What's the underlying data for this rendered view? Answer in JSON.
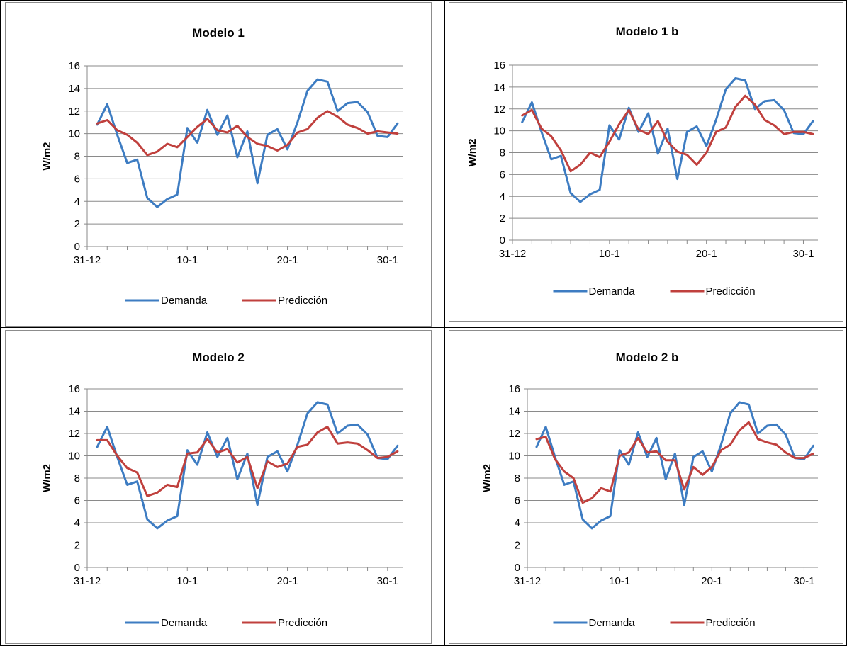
{
  "colors": {
    "demanda": "#3d7cc2",
    "prediccion": "#c0403d"
  },
  "chart_data": [
    {
      "type": "line",
      "title": "Modelo 1",
      "xlabel": "",
      "ylabel": "W/m2",
      "ylim": [
        0,
        16
      ],
      "yticks": [
        0,
        2,
        4,
        6,
        8,
        10,
        12,
        14,
        16
      ],
      "xlim": [
        0,
        31.5
      ],
      "xtick_positions": [
        0,
        10,
        20,
        30
      ],
      "xtick_labels": [
        "31-12",
        "10-1",
        "20-1",
        "30-1"
      ],
      "x": [
        1,
        2,
        3,
        4,
        5,
        6,
        7,
        8,
        9,
        10,
        11,
        12,
        13,
        14,
        15,
        16,
        17,
        18,
        19,
        20,
        21,
        22,
        23,
        24,
        25,
        26,
        27,
        28,
        29,
        30,
        31
      ],
      "grid": true,
      "legend_position": "bottom",
      "series": [
        {
          "name": "Demanda",
          "color": "#3d7cc2",
          "values": [
            10.8,
            12.6,
            9.9,
            7.4,
            7.7,
            4.3,
            3.5,
            4.2,
            4.6,
            10.5,
            9.2,
            12.1,
            9.9,
            11.6,
            7.9,
            10.2,
            5.6,
            9.9,
            10.4,
            8.6,
            11.0,
            13.8,
            14.8,
            14.6,
            12.0,
            12.7,
            12.8,
            11.9,
            9.8,
            9.7,
            10.9
          ]
        },
        {
          "name": "Predicción",
          "color": "#c0403d",
          "values": [
            10.9,
            11.2,
            10.3,
            9.9,
            9.2,
            8.1,
            8.4,
            9.1,
            8.8,
            9.7,
            10.6,
            11.3,
            10.3,
            10.1,
            10.7,
            9.7,
            9.1,
            8.9,
            8.5,
            9.0,
            10.1,
            10.4,
            11.4,
            12.0,
            11.5,
            10.8,
            10.5,
            10.0,
            10.2,
            10.1,
            10.0
          ]
        }
      ]
    },
    {
      "type": "line",
      "title": "Modelo 1 b",
      "xlabel": "",
      "ylabel": "W/m2",
      "ylim": [
        0,
        16
      ],
      "yticks": [
        0,
        2,
        4,
        6,
        8,
        10,
        12,
        14,
        16
      ],
      "xlim": [
        0,
        31.5
      ],
      "xtick_positions": [
        0,
        10,
        20,
        30
      ],
      "xtick_labels": [
        "31-12",
        "10-1",
        "20-1",
        "30-1"
      ],
      "x": [
        1,
        2,
        3,
        4,
        5,
        6,
        7,
        8,
        9,
        10,
        11,
        12,
        13,
        14,
        15,
        16,
        17,
        18,
        19,
        20,
        21,
        22,
        23,
        24,
        25,
        26,
        27,
        28,
        29,
        30,
        31
      ],
      "grid": true,
      "legend_position": "bottom",
      "series": [
        {
          "name": "Demanda",
          "color": "#3d7cc2",
          "values": [
            10.8,
            12.6,
            9.9,
            7.4,
            7.7,
            4.3,
            3.5,
            4.2,
            4.6,
            10.5,
            9.2,
            12.1,
            9.9,
            11.6,
            7.9,
            10.2,
            5.6,
            9.9,
            10.4,
            8.6,
            11.0,
            13.8,
            14.8,
            14.6,
            12.0,
            12.7,
            12.8,
            11.9,
            9.8,
            9.7,
            10.9
          ]
        },
        {
          "name": "Predicción",
          "color": "#c0403d",
          "values": [
            11.4,
            11.9,
            10.2,
            9.5,
            8.2,
            6.3,
            6.9,
            8.0,
            7.6,
            9.0,
            10.6,
            11.9,
            10.1,
            9.7,
            10.9,
            9.0,
            8.1,
            7.8,
            6.9,
            8.0,
            9.9,
            10.3,
            12.2,
            13.2,
            12.4,
            11.0,
            10.5,
            9.7,
            9.9,
            9.9,
            9.7
          ]
        }
      ]
    },
    {
      "type": "line",
      "title": "Modelo 2",
      "xlabel": "",
      "ylabel": "W/m2",
      "ylim": [
        0,
        16
      ],
      "yticks": [
        0,
        2,
        4,
        6,
        8,
        10,
        12,
        14,
        16
      ],
      "xlim": [
        0,
        31.5
      ],
      "xtick_positions": [
        0,
        10,
        20,
        30
      ],
      "xtick_labels": [
        "31-12",
        "10-1",
        "20-1",
        "30-1"
      ],
      "x": [
        1,
        2,
        3,
        4,
        5,
        6,
        7,
        8,
        9,
        10,
        11,
        12,
        13,
        14,
        15,
        16,
        17,
        18,
        19,
        20,
        21,
        22,
        23,
        24,
        25,
        26,
        27,
        28,
        29,
        30,
        31
      ],
      "grid": true,
      "legend_position": "bottom",
      "series": [
        {
          "name": "Demanda",
          "color": "#3d7cc2",
          "values": [
            10.8,
            12.6,
            9.9,
            7.4,
            7.7,
            4.3,
            3.5,
            4.2,
            4.6,
            10.5,
            9.2,
            12.1,
            9.9,
            11.6,
            7.9,
            10.2,
            5.6,
            9.9,
            10.4,
            8.6,
            11.0,
            13.8,
            14.8,
            14.6,
            12.0,
            12.7,
            12.8,
            11.9,
            9.8,
            9.7,
            10.9
          ]
        },
        {
          "name": "Predicción",
          "color": "#c0403d",
          "values": [
            11.4,
            11.4,
            10.0,
            8.9,
            8.5,
            6.4,
            6.7,
            7.4,
            7.2,
            10.2,
            10.3,
            11.5,
            10.3,
            10.6,
            9.4,
            9.9,
            7.1,
            9.5,
            9.0,
            9.3,
            10.8,
            11.0,
            12.1,
            12.6,
            11.1,
            11.2,
            11.1,
            10.5,
            9.8,
            9.9,
            10.4
          ]
        }
      ]
    },
    {
      "type": "line",
      "title": "Modelo 2 b",
      "xlabel": "",
      "ylabel": "W/m2",
      "ylim": [
        0,
        16
      ],
      "yticks": [
        0,
        2,
        4,
        6,
        8,
        10,
        12,
        14,
        16
      ],
      "xlim": [
        0,
        31.5
      ],
      "xtick_positions": [
        0,
        10,
        20,
        30
      ],
      "xtick_labels": [
        "31-12",
        "10-1",
        "20-1",
        "30-1"
      ],
      "x": [
        1,
        2,
        3,
        4,
        5,
        6,
        7,
        8,
        9,
        10,
        11,
        12,
        13,
        14,
        15,
        16,
        17,
        18,
        19,
        20,
        21,
        22,
        23,
        24,
        25,
        26,
        27,
        28,
        29,
        30,
        31
      ],
      "grid": true,
      "legend_position": "bottom",
      "series": [
        {
          "name": "Demanda",
          "color": "#3d7cc2",
          "values": [
            10.8,
            12.6,
            9.9,
            7.4,
            7.7,
            4.3,
            3.5,
            4.2,
            4.6,
            10.5,
            9.2,
            12.1,
            9.9,
            11.6,
            7.9,
            10.2,
            5.6,
            9.9,
            10.4,
            8.6,
            11.0,
            13.8,
            14.8,
            14.6,
            12.0,
            12.7,
            12.8,
            11.9,
            9.8,
            9.7,
            10.9
          ]
        },
        {
          "name": "Predicción",
          "color": "#c0403d",
          "values": [
            11.5,
            11.7,
            9.7,
            8.6,
            8.0,
            5.8,
            6.2,
            7.1,
            6.8,
            10.0,
            10.3,
            11.6,
            10.3,
            10.4,
            9.6,
            9.6,
            7.0,
            9.0,
            8.3,
            9.0,
            10.5,
            11.0,
            12.3,
            13.0,
            11.5,
            11.2,
            11.0,
            10.3,
            9.8,
            9.8,
            10.2
          ]
        }
      ]
    }
  ]
}
